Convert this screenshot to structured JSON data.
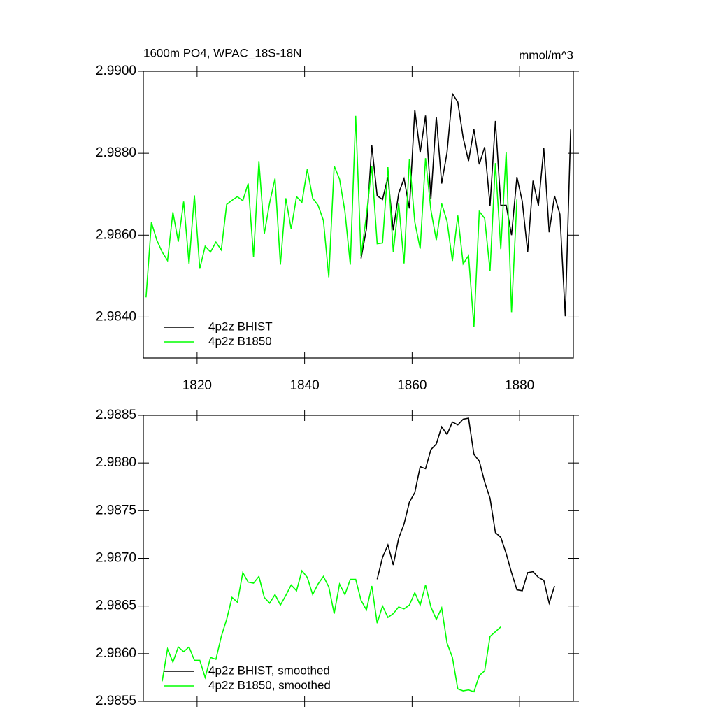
{
  "chart_data": [
    {
      "type": "line",
      "title": "1600m PO4, WPAC_18S-18N",
      "units": "mmol/m^3",
      "xlim": [
        1810,
        1890
      ],
      "xticks": [
        1820,
        1840,
        1860,
        1880
      ],
      "ylim": [
        2.983,
        2.99
      ],
      "yticks": [
        {
          "value": 2.99,
          "label": "2.9900"
        },
        {
          "value": 2.988,
          "label": "2.9880"
        },
        {
          "value": 2.986,
          "label": "2.9860"
        },
        {
          "value": 2.984,
          "label": "2.9840"
        }
      ],
      "series": [
        {
          "name": "4p2z BHIST",
          "color": "#000000",
          "x": [
            1850.5,
            1851.5,
            1852.5,
            1853.5,
            1854.5,
            1855.5,
            1856.5,
            1857.5,
            1858.5,
            1859.5,
            1860.5,
            1861.5,
            1862.5,
            1863.5,
            1864.5,
            1865.5,
            1866.5,
            1867.5,
            1868.5,
            1869.5,
            1870.5,
            1871.5,
            1872.5,
            1873.5,
            1874.5,
            1875.5,
            1876.5,
            1877.5,
            1878.5,
            1879.5,
            1880.5,
            1881.5,
            1882.5,
            1883.5,
            1884.5,
            1885.5,
            1886.5,
            1887.5,
            1888.5,
            1889.5
          ],
          "values": [
            2.98543,
            2.98615,
            2.98819,
            2.98696,
            2.98687,
            2.98742,
            2.98612,
            2.98702,
            2.98738,
            2.98665,
            2.98906,
            2.98802,
            2.98892,
            2.98689,
            2.98889,
            2.98726,
            2.98802,
            2.98945,
            2.98925,
            2.98838,
            2.98781,
            2.98858,
            2.98773,
            2.98815,
            2.98672,
            2.98879,
            2.98673,
            2.98673,
            2.986,
            2.98742,
            2.98682,
            2.98559,
            2.98733,
            2.98672,
            2.98812,
            2.98607,
            2.98696,
            2.98651,
            2.98402,
            2.98858
          ]
        },
        {
          "name": "4p2z B1850",
          "color": "#00ff00",
          "x": [
            1810.5,
            1811.5,
            1812.5,
            1813.5,
            1814.5,
            1815.5,
            1816.5,
            1817.5,
            1818.5,
            1819.5,
            1820.5,
            1821.5,
            1822.5,
            1823.5,
            1824.5,
            1825.5,
            1826.5,
            1827.5,
            1828.5,
            1829.5,
            1830.5,
            1831.5,
            1832.5,
            1833.5,
            1834.5,
            1835.5,
            1836.5,
            1837.5,
            1838.5,
            1839.5,
            1840.5,
            1841.5,
            1842.5,
            1843.5,
            1844.5,
            1845.5,
            1846.5,
            1847.5,
            1848.5,
            1849.5,
            1850.5,
            1851.5,
            1852.5,
            1853.5,
            1854.5,
            1855.5,
            1856.5,
            1857.5,
            1858.5,
            1859.5,
            1860.5,
            1861.5,
            1862.5,
            1863.5,
            1864.5,
            1865.5,
            1866.5,
            1867.5,
            1868.5,
            1869.5,
            1870.5,
            1871.5,
            1872.5,
            1873.5,
            1874.5,
            1875.5,
            1876.5,
            1877.5,
            1878.5,
            1879.5
          ],
          "values": [
            2.98448,
            2.98631,
            2.98588,
            2.98559,
            2.98538,
            2.98656,
            2.98584,
            2.98682,
            2.9853,
            2.98697,
            2.98518,
            2.98573,
            2.98559,
            2.98583,
            2.98564,
            2.98675,
            2.98685,
            2.98694,
            2.98684,
            2.98726,
            2.98547,
            2.98781,
            2.98603,
            2.98679,
            2.98738,
            2.98528,
            2.9869,
            2.98615,
            2.98694,
            2.9868,
            2.98761,
            2.9869,
            2.98673,
            2.98636,
            2.98497,
            2.98769,
            2.98737,
            2.98658,
            2.98528,
            2.98891,
            2.98549,
            2.98648,
            2.98769,
            2.98579,
            2.98581,
            2.98766,
            2.98559,
            2.98679,
            2.98531,
            2.98786,
            2.98632,
            2.98567,
            2.98788,
            2.98661,
            2.98588,
            2.98677,
            2.98634,
            2.98537,
            2.98648,
            2.9853,
            2.9855,
            2.98376,
            2.98658,
            2.98641,
            2.98513,
            2.98776,
            2.98566,
            2.98803,
            2.98412,
            2.98687
          ]
        }
      ]
    },
    {
      "type": "line",
      "xlim": [
        1810,
        1890
      ],
      "xticks": [
        1820,
        1840,
        1860,
        1880
      ],
      "ylim": [
        2.9855,
        2.9885
      ],
      "yticks": [
        {
          "value": 2.9885,
          "label": "2.9885"
        },
        {
          "value": 2.988,
          "label": "2.9880"
        },
        {
          "value": 2.9875,
          "label": "2.9875"
        },
        {
          "value": 2.987,
          "label": "2.9870"
        },
        {
          "value": 2.9865,
          "label": "2.9865"
        },
        {
          "value": 2.986,
          "label": "2.9860"
        },
        {
          "value": 2.9855,
          "label": "2.9855"
        }
      ],
      "series": [
        {
          "name": "4p2z BHIST, smoothed",
          "color": "#000000",
          "x": [
            1853.5,
            1854.5,
            1855.5,
            1856.5,
            1857.5,
            1858.5,
            1859.5,
            1860.5,
            1861.5,
            1862.5,
            1863.5,
            1864.5,
            1865.5,
            1866.5,
            1867.5,
            1868.5,
            1869.5,
            1870.5,
            1871.5,
            1872.5,
            1873.5,
            1874.5,
            1875.5,
            1876.5,
            1877.5,
            1878.5,
            1879.5,
            1880.5,
            1881.5,
            1882.5,
            1883.5,
            1884.5,
            1885.5,
            1886.5
          ],
          "values": [
            2.98678,
            2.98701,
            2.98714,
            2.98693,
            2.98721,
            2.98736,
            2.98759,
            2.98769,
            2.98796,
            2.98794,
            2.98814,
            2.9882,
            2.98838,
            2.9883,
            2.98843,
            2.9884,
            2.98846,
            2.98847,
            2.98809,
            2.98802,
            2.9878,
            2.98763,
            2.98727,
            2.98722,
            2.98705,
            2.98685,
            2.98667,
            2.98666,
            2.98685,
            2.98686,
            2.9868,
            2.98677,
            2.98653,
            2.98671
          ]
        },
        {
          "name": "4p2z B1850, smoothed",
          "color": "#00ff00",
          "x": [
            1813.5,
            1814.5,
            1815.5,
            1816.5,
            1817.5,
            1818.5,
            1819.5,
            1820.5,
            1821.5,
            1822.5,
            1823.5,
            1824.5,
            1825.5,
            1826.5,
            1827.5,
            1828.5,
            1829.5,
            1830.5,
            1831.5,
            1832.5,
            1833.5,
            1834.5,
            1835.5,
            1836.5,
            1837.5,
            1838.5,
            1839.5,
            1840.5,
            1841.5,
            1842.5,
            1843.5,
            1844.5,
            1845.5,
            1846.5,
            1847.5,
            1848.5,
            1849.5,
            1850.5,
            1851.5,
            1852.5,
            1853.5,
            1854.5,
            1855.5,
            1856.5,
            1857.5,
            1858.5,
            1859.5,
            1860.5,
            1861.5,
            1862.5,
            1863.5,
            1864.5,
            1865.5,
            1866.5,
            1867.5,
            1868.5,
            1869.5,
            1870.5,
            1871.5,
            1872.5,
            1873.5,
            1874.5,
            1875.5,
            1876.5
          ],
          "values": [
            2.98571,
            2.98605,
            2.98591,
            2.98607,
            2.98602,
            2.98607,
            2.98593,
            2.98593,
            2.98575,
            2.98596,
            2.98594,
            2.98618,
            2.98636,
            2.98659,
            2.98654,
            2.98685,
            2.98675,
            2.98674,
            2.98681,
            2.98659,
            2.98653,
            2.98662,
            2.98651,
            2.98661,
            2.98672,
            2.98666,
            2.98687,
            2.9868,
            2.98662,
            2.98673,
            2.98681,
            2.9867,
            2.98642,
            2.98673,
            2.98662,
            2.98678,
            2.98678,
            2.98656,
            2.98646,
            2.98671,
            2.98632,
            2.9865,
            2.98638,
            2.98642,
            2.98649,
            2.98647,
            2.98651,
            2.98664,
            2.98651,
            2.98672,
            2.98649,
            2.98636,
            2.98648,
            2.98611,
            2.98596,
            2.98563,
            2.98561,
            2.98562,
            2.9856,
            2.98577,
            2.98582,
            2.98618,
            2.98623,
            2.98628
          ]
        }
      ]
    }
  ]
}
